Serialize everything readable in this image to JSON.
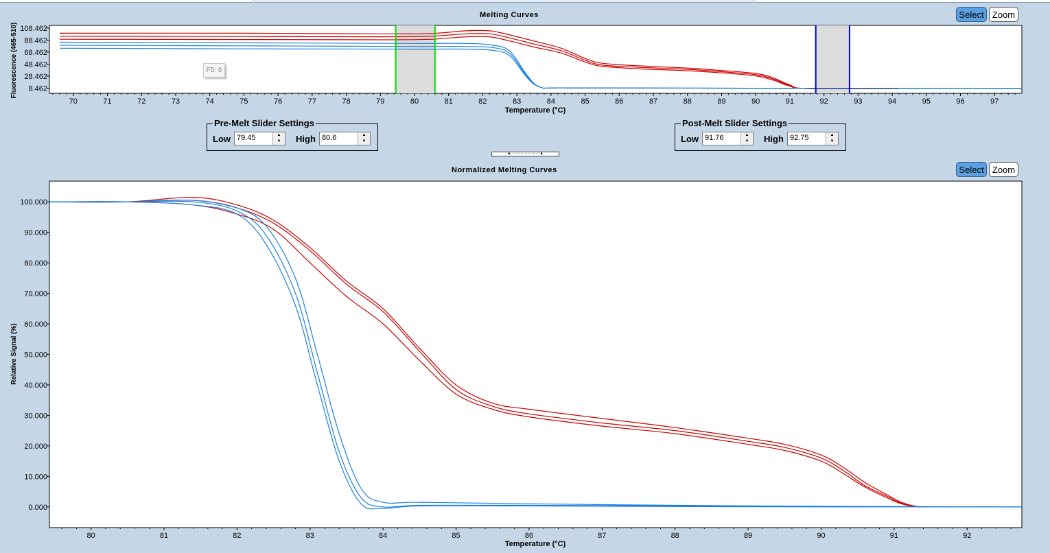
{
  "top_chart": {
    "title": "Melting Curves",
    "ylabel": "Fluorescence (465-510)",
    "xlabel": "Temperature (°C)",
    "select_label": "Select",
    "zoom_label": "Zoom",
    "tooltip": "F5: 6"
  },
  "pre_melt": {
    "title": "Pre-Melt Slider Settings",
    "low_label": "Low",
    "low_value": "79.45",
    "high_label": "High",
    "high_value": "80.6"
  },
  "post_melt": {
    "title": "Post-Melt Slider Settings",
    "low_label": "Low",
    "low_value": "91.76",
    "high_label": "High",
    "high_value": "92.75"
  },
  "bottom_chart": {
    "title": "Normalized Melting Curves",
    "ylabel": "Relative Signal (%)",
    "xlabel": "Temperature (°C)",
    "select_label": "Select",
    "zoom_label": "Zoom"
  },
  "colors": {
    "red": "#cc0000",
    "blue": "#1a7fe0",
    "pre_slider": "#00e000",
    "post_slider": "#0000cc",
    "slider_band": "#dcdcdc"
  },
  "chart_data": [
    {
      "type": "line",
      "title": "Melting Curves",
      "xlabel": "Temperature (°C)",
      "ylabel": "Fluorescence (465-510)",
      "xlim": [
        69.3,
        97.8
      ],
      "ylim": [
        0,
        113
      ],
      "xticks": [
        70,
        71,
        72,
        73,
        74,
        75,
        76,
        77,
        78,
        79,
        80,
        81,
        82,
        83,
        84,
        85,
        86,
        87,
        88,
        89,
        90,
        91,
        92,
        93,
        94,
        95,
        96,
        97
      ],
      "yticks": [
        "108.462",
        "88.462",
        "68.462",
        "48.462",
        "28.462",
        "8.462"
      ],
      "ytick_values": [
        108.462,
        88.462,
        68.462,
        48.462,
        28.462,
        8.462
      ],
      "pre_melt_range": [
        79.45,
        80.6
      ],
      "post_melt_range": [
        91.76,
        92.75
      ],
      "series": [
        {
          "name": "red-1",
          "color": "red",
          "x": [
            69.6,
            75,
            79,
            80.5,
            81.5,
            82.2,
            82.8,
            83.5,
            84.3,
            85,
            85.5,
            86.5,
            88,
            89,
            90,
            90.5,
            91,
            91.5,
            94.2
          ],
          "y": [
            100,
            100,
            99,
            99.5,
            104,
            104,
            97,
            87,
            75,
            58,
            50,
            46,
            42,
            38,
            33,
            26,
            14,
            8,
            8
          ]
        },
        {
          "name": "red-2",
          "color": "red",
          "x": [
            69.6,
            75,
            79,
            80.5,
            81.5,
            82.2,
            82.8,
            83.5,
            84.3,
            85,
            85.5,
            86.5,
            88,
            89,
            90,
            90.5,
            91,
            91.5,
            94.2
          ],
          "y": [
            95,
            94.5,
            94,
            95,
            99,
            99,
            92,
            82,
            71,
            55,
            47,
            43.5,
            40,
            36,
            31,
            24,
            13,
            8,
            8
          ]
        },
        {
          "name": "red-3",
          "color": "red",
          "x": [
            69.6,
            75,
            79,
            80.5,
            81.5,
            82.2,
            82.8,
            83.5,
            84.3,
            85,
            85.5,
            86.5,
            88,
            89,
            90,
            90.5,
            91,
            91.5,
            94.2
          ],
          "y": [
            90,
            89.5,
            89,
            90,
            94,
            94,
            87,
            77,
            67,
            52,
            45,
            41,
            37.5,
            34,
            29,
            22,
            12,
            8,
            8
          ]
        },
        {
          "name": "blue-1",
          "color": "blue",
          "x": [
            69.6,
            75,
            80,
            81.5,
            82.3,
            82.8,
            83.3,
            83.7,
            84.5,
            90,
            97.8
          ],
          "y": [
            85,
            84,
            83,
            83,
            80,
            70,
            30,
            10,
            9,
            8.5,
            8
          ]
        },
        {
          "name": "blue-2",
          "color": "blue",
          "x": [
            69.6,
            75,
            80,
            81.5,
            82.3,
            82.8,
            83.3,
            83.7,
            84.5,
            90,
            97.8
          ],
          "y": [
            80,
            79,
            78,
            78,
            76,
            66,
            28,
            10,
            9,
            8.5,
            8
          ]
        },
        {
          "name": "blue-3",
          "color": "blue",
          "x": [
            69.6,
            75,
            80,
            81.5,
            82.3,
            82.8,
            83.3,
            83.7,
            84.5,
            90,
            97.8
          ],
          "y": [
            75,
            74,
            73.5,
            73.5,
            71.5,
            62,
            26,
            10,
            9,
            8.5,
            8
          ]
        }
      ]
    },
    {
      "type": "line",
      "title": "Normalized Melting Curves",
      "xlabel": "Temperature (°C)",
      "ylabel": "Relative Signal (%)",
      "xlim": [
        79.43,
        92.75
      ],
      "ylim": [
        -6.8,
        106.8
      ],
      "xticks": [
        80,
        81,
        82,
        83,
        84,
        85,
        86,
        87,
        88,
        89,
        90,
        91,
        92
      ],
      "yticks": [
        "100.000",
        "90.000",
        "80.000",
        "70.000",
        "60.000",
        "50.000",
        "40.000",
        "30.000",
        "20.000",
        "10.000",
        "0.000"
      ],
      "ytick_values": [
        100,
        90,
        80,
        70,
        60,
        50,
        40,
        30,
        20,
        10,
        0
      ],
      "series": [
        {
          "name": "red-1",
          "color": "red",
          "x": [
            79.43,
            80.5,
            81.4,
            82,
            82.5,
            83,
            83.5,
            84,
            84.5,
            85,
            85.5,
            86,
            87,
            88,
            89,
            89.5,
            90,
            90.3,
            90.6,
            90.9,
            91.1,
            91.3,
            91.5
          ],
          "y": [
            100,
            100,
            101.5,
            99,
            94,
            85,
            74,
            65,
            52,
            40,
            34,
            32,
            29,
            26,
            22.5,
            20.5,
            17,
            13,
            8,
            4,
            1.5,
            0.2,
            0
          ]
        },
        {
          "name": "red-2",
          "color": "red",
          "x": [
            79.43,
            80.5,
            81.4,
            82,
            82.5,
            83,
            83.5,
            84,
            84.5,
            85,
            85.5,
            86,
            87,
            88,
            89,
            89.5,
            90,
            90.3,
            90.6,
            90.9,
            91.1,
            91.3,
            91.5
          ],
          "y": [
            100,
            100,
            100.5,
            98,
            93,
            84,
            73,
            64,
            51,
            38.5,
            33,
            30.5,
            27.5,
            25,
            21.5,
            19.5,
            16,
            12,
            7,
            3.5,
            1.2,
            0.1,
            0
          ]
        },
        {
          "name": "red-3",
          "color": "red",
          "x": [
            79.43,
            80.5,
            81.4,
            82,
            82.5,
            83,
            83.5,
            84,
            84.5,
            85,
            85.5,
            86,
            87,
            88,
            89,
            89.5,
            90,
            90.3,
            90.6,
            90.9,
            91.1,
            91.3,
            91.5
          ],
          "y": [
            100,
            100,
            99,
            96,
            91,
            80,
            69,
            60,
            48,
            37,
            32,
            29.5,
            26.5,
            24,
            20.5,
            18.5,
            15,
            11,
            6.5,
            3,
            1,
            0.1,
            0
          ]
        },
        {
          "name": "blue-1",
          "color": "blue",
          "x": [
            79.43,
            80.5,
            81.4,
            82,
            82.4,
            82.8,
            83.1,
            83.4,
            83.7,
            84,
            84.5,
            86,
            88,
            90,
            92.75
          ],
          "y": [
            100,
            100,
            100.5,
            98,
            92,
            75,
            50,
            24,
            6,
            1.5,
            1.5,
            1,
            0.5,
            0.2,
            0
          ]
        },
        {
          "name": "blue-2",
          "color": "blue",
          "x": [
            79.43,
            80.5,
            81.4,
            82,
            82.4,
            82.8,
            83.1,
            83.4,
            83.7,
            84,
            84.5,
            86,
            88,
            90,
            92.75
          ],
          "y": [
            100,
            100,
            100,
            97,
            89,
            70,
            44,
            18,
            3,
            0,
            0.5,
            0.5,
            0.3,
            0.1,
            0
          ]
        },
        {
          "name": "blue-3",
          "color": "blue",
          "x": [
            79.43,
            80.5,
            81.4,
            82,
            82.4,
            82.8,
            83.1,
            83.4,
            83.7,
            84,
            84.5,
            86,
            88,
            90,
            92.75
          ],
          "y": [
            100,
            100,
            99,
            96,
            86,
            66,
            40,
            15,
            1,
            -0.5,
            0.3,
            0.3,
            0.1,
            0,
            0
          ]
        }
      ]
    }
  ]
}
